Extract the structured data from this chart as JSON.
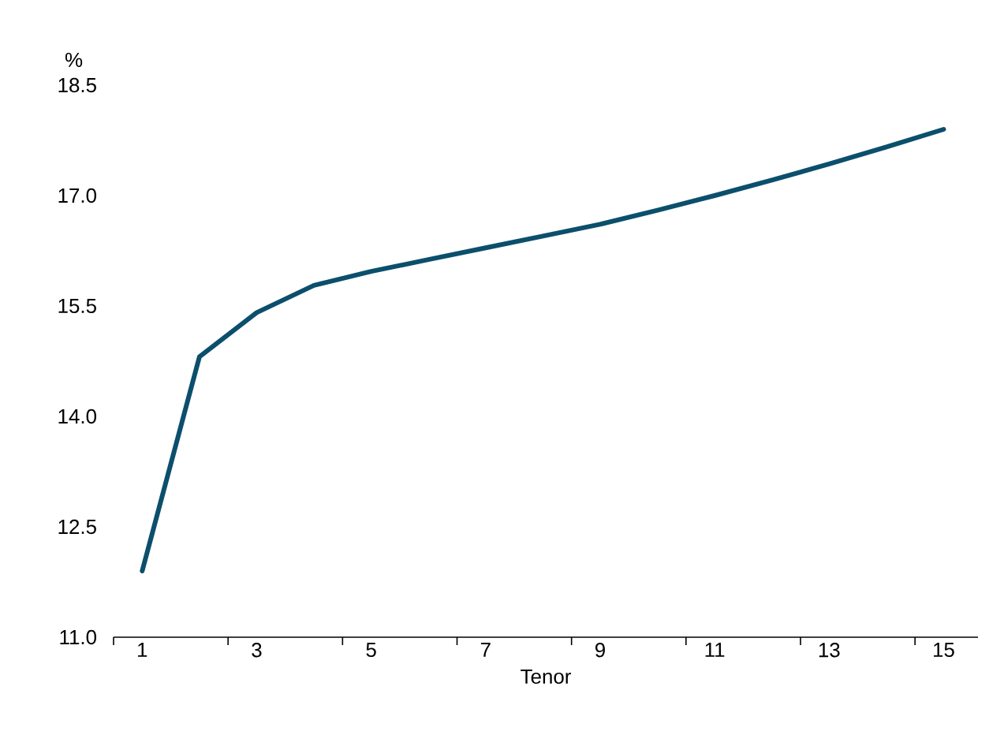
{
  "chart_data": {
    "type": "line",
    "xlabel": "Tenor",
    "ylabel": "%",
    "categories": [
      "1",
      null,
      "3",
      null,
      "5",
      null,
      "7",
      null,
      "9",
      null,
      "11",
      null,
      "13",
      null,
      "15"
    ],
    "values": [
      11.9,
      14.81,
      15.41,
      15.78,
      15.97,
      16.13,
      16.29,
      16.45,
      16.61,
      16.8,
      17.0,
      17.21,
      17.43,
      17.66,
      17.9
    ],
    "color": "#0b4f6c",
    "ylim": [
      11,
      18.5
    ],
    "yticks": [
      {
        "value": 11,
        "label": "11.0"
      },
      {
        "value": 12.5,
        "label": "12.5"
      },
      {
        "value": 14,
        "label": "14.0"
      },
      {
        "value": 15.5,
        "label": "15.5"
      },
      {
        "value": 17,
        "label": "17.0"
      },
      {
        "value": 18.5,
        "label": "18.5"
      }
    ]
  }
}
